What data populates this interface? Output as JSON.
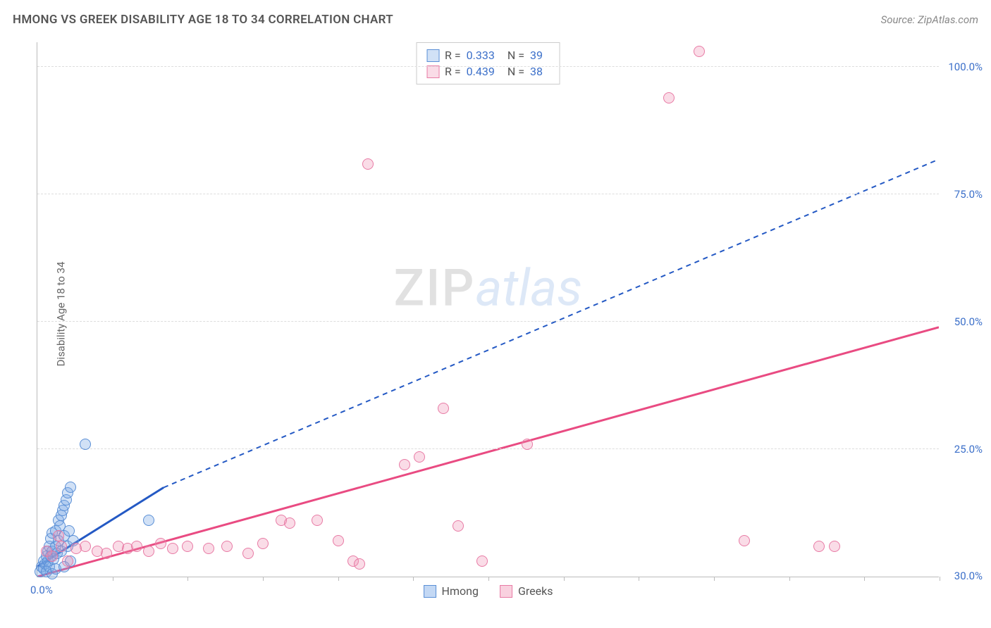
{
  "header": {
    "title": "HMONG VS GREEK DISABILITY AGE 18 TO 34 CORRELATION CHART",
    "source": "Source: ZipAtlas.com"
  },
  "ylabel": "Disability Age 18 to 34",
  "watermark": {
    "part1": "ZIP",
    "part2": "atlas"
  },
  "chart": {
    "type": "scatter",
    "background_color": "#ffffff",
    "grid_color": "#dddddd",
    "axis_color": "#bbbbbb",
    "label_color": "#3b6fc9",
    "xlim": [
      0,
      30
    ],
    "ylim": [
      0,
      105
    ],
    "x_origin_label": "0.0%",
    "x_max_label": "30.0%",
    "x_ticks": [
      2.5,
      5,
      7.5,
      10,
      12.5,
      15,
      17.5,
      20,
      22.5,
      25,
      27.5,
      30
    ],
    "y_ticks": [
      {
        "v": 25,
        "label": "25.0%"
      },
      {
        "v": 50,
        "label": "50.0%"
      },
      {
        "v": 75,
        "label": "75.0%"
      },
      {
        "v": 100,
        "label": "100.0%"
      }
    ],
    "marker_radius": 8,
    "marker_border_width": 1.5,
    "series": [
      {
        "name": "Hmong",
        "fill": "rgba(122,169,230,0.35)",
        "stroke": "#5a8fd6",
        "stats": {
          "R": "0.333",
          "N": "39"
        },
        "trend": {
          "color": "#2459c4",
          "solid_width": 3,
          "dash_width": 2,
          "dash": "7,6",
          "x1": 0,
          "y1": 2,
          "x_solid_end": 4.2,
          "y_solid_end": 17.5,
          "x2": 30,
          "y2": 82
        },
        "points": [
          {
            "x": 0.1,
            "y": 1
          },
          {
            "x": 0.15,
            "y": 2
          },
          {
            "x": 0.2,
            "y": 1.5
          },
          {
            "x": 0.2,
            "y": 3
          },
          {
            "x": 0.25,
            "y": 2.5
          },
          {
            "x": 0.3,
            "y": 4
          },
          {
            "x": 0.3,
            "y": 1
          },
          {
            "x": 0.35,
            "y": 5
          },
          {
            "x": 0.35,
            "y": 3
          },
          {
            "x": 0.4,
            "y": 6
          },
          {
            "x": 0.4,
            "y": 2
          },
          {
            "x": 0.45,
            "y": 7.5
          },
          {
            "x": 0.45,
            "y": 4
          },
          {
            "x": 0.5,
            "y": 8.5
          },
          {
            "x": 0.5,
            "y": 5
          },
          {
            "x": 0.55,
            "y": 3.5
          },
          {
            "x": 0.6,
            "y": 9
          },
          {
            "x": 0.6,
            "y": 6
          },
          {
            "x": 0.65,
            "y": 4.5
          },
          {
            "x": 0.7,
            "y": 11
          },
          {
            "x": 0.7,
            "y": 7
          },
          {
            "x": 0.75,
            "y": 10
          },
          {
            "x": 0.8,
            "y": 12
          },
          {
            "x": 0.8,
            "y": 5
          },
          {
            "x": 0.85,
            "y": 13
          },
          {
            "x": 0.9,
            "y": 8
          },
          {
            "x": 0.9,
            "y": 14
          },
          {
            "x": 0.95,
            "y": 15
          },
          {
            "x": 1.0,
            "y": 16.5
          },
          {
            "x": 1.0,
            "y": 6
          },
          {
            "x": 1.05,
            "y": 9
          },
          {
            "x": 1.1,
            "y": 17.5
          },
          {
            "x": 1.1,
            "y": 3
          },
          {
            "x": 1.2,
            "y": 7
          },
          {
            "x": 0.5,
            "y": 0.5
          },
          {
            "x": 0.6,
            "y": 1.5
          },
          {
            "x": 0.9,
            "y": 2
          },
          {
            "x": 1.6,
            "y": 26
          },
          {
            "x": 3.7,
            "y": 11
          }
        ]
      },
      {
        "name": "Greeks",
        "fill": "rgba(240,140,175,0.30)",
        "stroke": "#e87ba5",
        "stats": {
          "R": "0.439",
          "N": "38"
        },
        "trend": {
          "color": "#e94b82",
          "solid_width": 3,
          "x1": 0,
          "y1": 0,
          "x2": 30,
          "y2": 49
        },
        "points": [
          {
            "x": 0.3,
            "y": 5
          },
          {
            "x": 0.5,
            "y": 4
          },
          {
            "x": 0.8,
            "y": 6
          },
          {
            "x": 1.0,
            "y": 3
          },
          {
            "x": 1.3,
            "y": 5.5
          },
          {
            "x": 1.6,
            "y": 6
          },
          {
            "x": 2.0,
            "y": 5
          },
          {
            "x": 2.3,
            "y": 4.5
          },
          {
            "x": 2.7,
            "y": 6
          },
          {
            "x": 3.0,
            "y": 5.5
          },
          {
            "x": 3.3,
            "y": 6
          },
          {
            "x": 3.7,
            "y": 5
          },
          {
            "x": 4.1,
            "y": 6.5
          },
          {
            "x": 4.5,
            "y": 5.5
          },
          {
            "x": 5.0,
            "y": 6
          },
          {
            "x": 5.7,
            "y": 5.5
          },
          {
            "x": 6.3,
            "y": 6
          },
          {
            "x": 7.0,
            "y": 4.5
          },
          {
            "x": 7.5,
            "y": 6.5
          },
          {
            "x": 8.1,
            "y": 11
          },
          {
            "x": 8.4,
            "y": 10.5
          },
          {
            "x": 9.3,
            "y": 11
          },
          {
            "x": 10.0,
            "y": 7
          },
          {
            "x": 10.5,
            "y": 3
          },
          {
            "x": 10.7,
            "y": 2.5
          },
          {
            "x": 11.0,
            "y": 81
          },
          {
            "x": 12.2,
            "y": 22
          },
          {
            "x": 12.7,
            "y": 23.5
          },
          {
            "x": 13.5,
            "y": 33
          },
          {
            "x": 14.0,
            "y": 10
          },
          {
            "x": 14.8,
            "y": 3
          },
          {
            "x": 16.3,
            "y": 26
          },
          {
            "x": 21.0,
            "y": 94
          },
          {
            "x": 22.0,
            "y": 103
          },
          {
            "x": 23.5,
            "y": 7
          },
          {
            "x": 26.0,
            "y": 6
          },
          {
            "x": 26.5,
            "y": 6
          },
          {
            "x": 0.7,
            "y": 8
          }
        ]
      }
    ]
  },
  "stats_box": {
    "r_label": "R =",
    "n_label": "N ="
  },
  "legend": [
    {
      "label": "Hmong",
      "fill": "rgba(122,169,230,0.45)",
      "stroke": "#5a8fd6"
    },
    {
      "label": "Greeks",
      "fill": "rgba(240,140,175,0.40)",
      "stroke": "#e87ba5"
    }
  ]
}
